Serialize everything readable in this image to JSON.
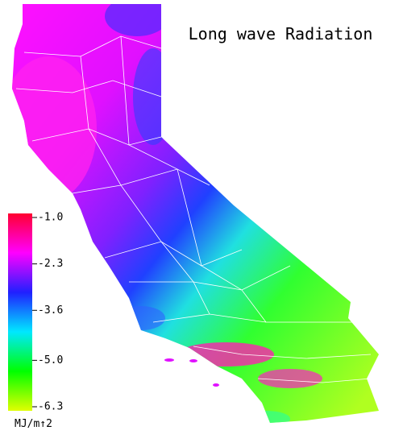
{
  "title": "Long wave Radiation",
  "colorbar": {
    "lim": [
      -6.3,
      -1.0
    ],
    "ticks": [
      {
        "value": -1.0,
        "label": "-1.0"
      },
      {
        "value": -2.3,
        "label": "-2.3"
      },
      {
        "value": -3.6,
        "label": "-3.6"
      },
      {
        "value": -5.0,
        "label": "-5.0"
      },
      {
        "value": -6.3,
        "label": "-6.3"
      }
    ],
    "colors": [
      "#ff0030",
      "#ff00ff",
      "#2020ff",
      "#00e8ff",
      "#00ff00",
      "#e0ff00"
    ],
    "unit": "MJ/m↑2"
  }
}
